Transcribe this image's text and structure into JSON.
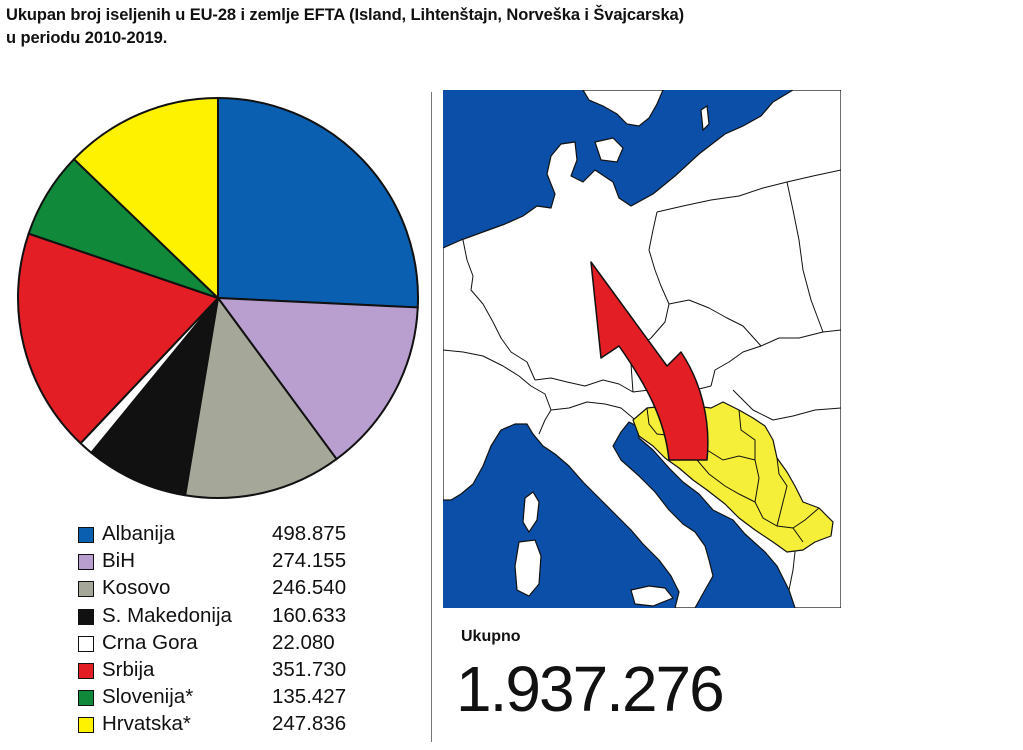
{
  "title_line1": "Ukupan broj iseljenih u EU-28 i zemlje EFTA (Island, Lihtenštajn, Norveška i Švajcarska)",
  "title_line2": "u periodu 2010-2019.",
  "chart_data": {
    "type": "pie",
    "title": "Ukupan broj iseljenih u EU-28 i zemlje EFTA (Island, Lihtenštajn, Norveška i Švajcarska) u periodu 2010-2019.",
    "slices": [
      {
        "label": "Albanija",
        "value": 498875,
        "display": "498.875",
        "color": "#0b5fb0"
      },
      {
        "label": "BiH",
        "value": 274155,
        "display": "274.155",
        "color": "#b99fd0"
      },
      {
        "label": "Kosovo",
        "value": 246540,
        "display": "246.540",
        "color": "#a5a899"
      },
      {
        "label": "S. Makedonija",
        "value": 160633,
        "display": "160.633",
        "color": "#111111"
      },
      {
        "label": "Crna Gora",
        "value": 22080,
        "display": "22.080",
        "color": "#ffffff"
      },
      {
        "label": "Srbija",
        "value": 351730,
        "display": "351.730",
        "color": "#e31e24"
      },
      {
        "label": "Slovenija*",
        "value": 135427,
        "display": "135.427",
        "color": "#108a3a"
      },
      {
        "label": "Hrvatska*",
        "value": 247836,
        "display": "247.836",
        "color": "#fff200"
      }
    ],
    "start_angle_deg": 0,
    "direction": "clockwise",
    "legend_position": "bottom-left"
  },
  "map": {
    "water_color": "#0b4fa8",
    "land_color": "#ffffff",
    "highlight_color": "#f5ef3a",
    "arrow_color": "#e31e24"
  },
  "total": {
    "label": "Ukupno",
    "value": "1.937.276"
  }
}
